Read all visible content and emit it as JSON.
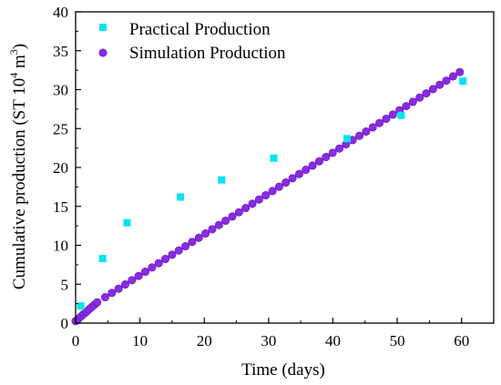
{
  "chart_data": {
    "type": "scatter",
    "title": "",
    "xlabel": "Time (days)",
    "ylabel_main": "Cumulative production (ST 10",
    "ylabel_sup": "4",
    "ylabel_mid": " m",
    "ylabel_sup2": "3",
    "ylabel_end": ")",
    "xlim": [
      0,
      65
    ],
    "ylim": [
      0,
      40
    ],
    "xticks": [
      0,
      10,
      20,
      30,
      40,
      50,
      60
    ],
    "yticks": [
      0,
      5,
      10,
      15,
      20,
      25,
      30,
      35,
      40
    ],
    "grid": false,
    "legend_position": "top-left",
    "series": [
      {
        "name": "Practical Production",
        "marker": "square",
        "color": "#00e5ee",
        "points": [
          [
            0.8,
            2.2
          ],
          [
            4.2,
            8.3
          ],
          [
            8.0,
            12.9
          ],
          [
            16.3,
            16.2
          ],
          [
            22.7,
            18.4
          ],
          [
            30.8,
            21.2
          ],
          [
            42.2,
            23.7
          ],
          [
            50.6,
            26.7
          ],
          [
            60.2,
            31.1
          ]
        ]
      },
      {
        "name": "Simulation Production",
        "marker": "circle",
        "color": "#8a2be2",
        "x_start": 0,
        "x_step": 0.42,
        "x_dense_until": 3.4,
        "x_sparse_start": 4.6,
        "x_sparse_step": 1.04,
        "x_end": 60.0,
        "y_at_x0": 0.25,
        "y_at_x3_4": 2.7,
        "y_at_x60": 32.4
      }
    ]
  },
  "legend": {
    "item1": "Practical Production",
    "item2": "Simulation Production"
  }
}
